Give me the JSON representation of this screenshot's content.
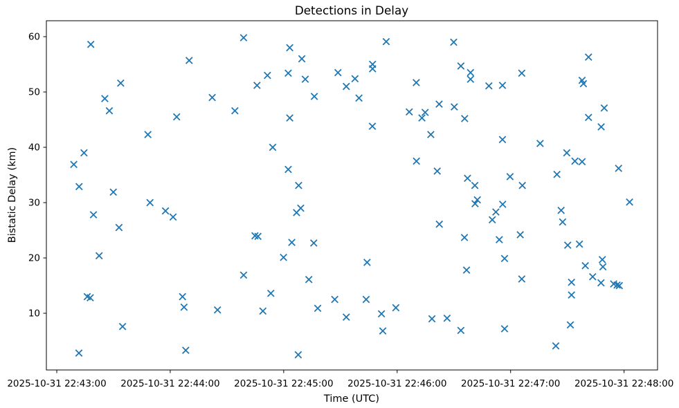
{
  "chart_data": {
    "type": "scatter",
    "title": "Detections in Delay",
    "xlabel": "Time (UTC)",
    "ylabel": "Bistatic Delay (km)",
    "marker": "x",
    "marker_color": "#1f77b4",
    "grid": false,
    "legend": null,
    "x_unit": "seconds after 2025-10-31 22:43:00 UTC",
    "x_ticks": [
      {
        "seconds": 0,
        "label": "2025-10-31 22:43:00"
      },
      {
        "seconds": 60,
        "label": "2025-10-31 22:44:00"
      },
      {
        "seconds": 120,
        "label": "2025-10-31 22:45:00"
      },
      {
        "seconds": 180,
        "label": "2025-10-31 22:46:00"
      },
      {
        "seconds": 240,
        "label": "2025-10-31 22:47:00"
      },
      {
        "seconds": 300,
        "label": "2025-10-31 22:48:00"
      }
    ],
    "y_ticks": [
      10,
      20,
      30,
      40,
      50,
      60
    ],
    "xlim_seconds": [
      -5.5,
      317.7
    ],
    "ylim": [
      -0.25,
      62.875
    ],
    "points": [
      [
        9.0,
        36.9
      ],
      [
        11.7,
        2.8
      ],
      [
        11.8,
        32.9
      ],
      [
        14.4,
        39.0
      ],
      [
        16.1,
        13.0
      ],
      [
        17.7,
        12.8
      ],
      [
        18.0,
        58.6
      ],
      [
        19.4,
        27.8
      ],
      [
        22.4,
        20.4
      ],
      [
        25.4,
        48.8
      ],
      [
        27.8,
        46.6
      ],
      [
        29.9,
        31.9
      ],
      [
        32.9,
        25.5
      ],
      [
        33.8,
        51.6
      ],
      [
        34.8,
        7.6
      ],
      [
        48.2,
        42.3
      ],
      [
        49.3,
        30.0
      ],
      [
        57.5,
        28.5
      ],
      [
        61.5,
        27.4
      ],
      [
        63.4,
        45.5
      ],
      [
        66.5,
        13.0
      ],
      [
        67.3,
        11.1
      ],
      [
        68.2,
        3.3
      ],
      [
        70.0,
        55.7
      ],
      [
        82.2,
        49.0
      ],
      [
        85.0,
        10.6
      ],
      [
        94.2,
        46.6
      ],
      [
        98.8,
        59.8
      ],
      [
        98.8,
        16.9
      ],
      [
        104.8,
        24.0
      ],
      [
        105.9,
        51.2
      ],
      [
        106.4,
        23.9
      ],
      [
        109.0,
        10.4
      ],
      [
        111.4,
        53.0
      ],
      [
        113.2,
        13.6
      ],
      [
        114.2,
        40.0
      ],
      [
        119.9,
        20.1
      ],
      [
        122.4,
        53.4
      ],
      [
        122.4,
        36.0
      ],
      [
        123.2,
        58.0
      ],
      [
        123.2,
        45.3
      ],
      [
        124.3,
        22.8
      ],
      [
        126.8,
        28.2
      ],
      [
        127.7,
        2.5
      ],
      [
        127.9,
        33.1
      ],
      [
        129.0,
        29.0
      ],
      [
        129.6,
        56.0
      ],
      [
        131.4,
        52.3
      ],
      [
        133.3,
        16.1
      ],
      [
        135.9,
        22.7
      ],
      [
        136.2,
        49.2
      ],
      [
        138.0,
        10.9
      ],
      [
        147.0,
        12.5
      ],
      [
        148.7,
        53.5
      ],
      [
        153.1,
        51.0
      ],
      [
        153.1,
        9.3
      ],
      [
        157.7,
        52.4
      ],
      [
        159.8,
        48.9
      ],
      [
        163.6,
        12.5
      ],
      [
        164.1,
        19.2
      ],
      [
        166.9,
        43.8
      ],
      [
        167.0,
        55.0
      ],
      [
        167.0,
        54.2
      ],
      [
        171.7,
        9.9
      ],
      [
        172.4,
        6.8
      ],
      [
        174.2,
        59.1
      ],
      [
        179.3,
        11.0
      ],
      [
        186.4,
        46.4
      ],
      [
        190.1,
        51.7
      ],
      [
        190.2,
        37.5
      ],
      [
        193.1,
        45.3
      ],
      [
        194.8,
        46.3
      ],
      [
        197.8,
        42.3
      ],
      [
        198.4,
        9.0
      ],
      [
        201.2,
        35.7
      ],
      [
        202.2,
        47.8
      ],
      [
        202.3,
        26.1
      ],
      [
        206.4,
        9.1
      ],
      [
        209.9,
        59.0
      ],
      [
        210.2,
        47.3
      ],
      [
        213.7,
        54.7
      ],
      [
        213.7,
        6.9
      ],
      [
        215.6,
        23.7
      ],
      [
        215.7,
        45.2
      ],
      [
        216.7,
        17.8
      ],
      [
        217.2,
        34.4
      ],
      [
        218.8,
        53.5
      ],
      [
        218.8,
        52.3
      ],
      [
        221.1,
        33.1
      ],
      [
        221.2,
        29.8
      ],
      [
        222.4,
        30.5
      ],
      [
        228.5,
        51.1
      ],
      [
        230.3,
        26.9
      ],
      [
        232.2,
        28.3
      ],
      [
        234.0,
        23.3
      ],
      [
        235.7,
        51.2
      ],
      [
        235.7,
        41.4
      ],
      [
        235.8,
        29.7
      ],
      [
        236.8,
        19.9
      ],
      [
        236.8,
        7.2
      ],
      [
        239.7,
        34.7
      ],
      [
        245.1,
        24.2
      ],
      [
        245.9,
        53.4
      ],
      [
        245.9,
        16.2
      ],
      [
        246.2,
        33.1
      ],
      [
        255.6,
        40.7
      ],
      [
        263.9,
        4.1
      ],
      [
        264.5,
        35.1
      ],
      [
        266.7,
        28.6
      ],
      [
        267.5,
        26.5
      ],
      [
        269.7,
        39.0
      ],
      [
        270.2,
        22.3
      ],
      [
        271.6,
        7.9
      ],
      [
        272.2,
        15.6
      ],
      [
        272.2,
        13.3
      ],
      [
        274.0,
        37.5
      ],
      [
        276.4,
        22.5
      ],
      [
        277.8,
        52.1
      ],
      [
        277.8,
        37.4
      ],
      [
        278.5,
        51.5
      ],
      [
        279.5,
        18.6
      ],
      [
        281.2,
        56.3
      ],
      [
        281.2,
        45.4
      ],
      [
        283.4,
        16.6
      ],
      [
        287.8,
        15.5
      ],
      [
        287.9,
        43.7
      ],
      [
        288.5,
        19.7
      ],
      [
        288.8,
        18.4
      ],
      [
        289.5,
        47.1
      ],
      [
        294.5,
        15.3
      ],
      [
        296.3,
        15.1
      ],
      [
        297.1,
        36.2
      ],
      [
        297.5,
        15.0
      ],
      [
        302.9,
        30.1
      ]
    ]
  }
}
